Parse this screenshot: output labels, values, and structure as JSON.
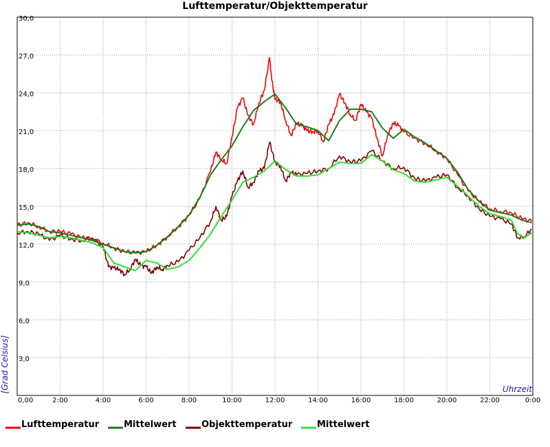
{
  "chart_data": {
    "type": "line",
    "title": "Lufttemperatur/Objekttemperatur",
    "xlabel": "Uhrzeit",
    "ylabel": "[Grad Celsius]",
    "xlim": [
      0,
      24
    ],
    "ylim": [
      0,
      30
    ],
    "grid": true,
    "legend_position": "bottom",
    "x_tick_labels": [
      "0,00",
      "2:00",
      "4:00",
      "6:00",
      "8:00",
      "10:00",
      "12:00",
      "14:00",
      "16:00",
      "18:00",
      "20:00",
      "22:00",
      "0:00"
    ],
    "y_tick_labels": [
      "3,0",
      "6,0",
      "9,0",
      "12,0",
      "15,0",
      "18,0",
      "21,0",
      "24,0",
      "27,0",
      "30,0"
    ],
    "series": [
      {
        "name": "Lufttemperatur",
        "color": "#ee0000",
        "x": [
          0,
          0.5,
          1,
          1.5,
          2,
          2.5,
          3,
          3.5,
          4,
          4.5,
          5,
          5.5,
          6,
          6.5,
          7,
          7.5,
          8,
          8.5,
          9,
          9.25,
          9.5,
          9.75,
          10,
          10.25,
          10.5,
          10.75,
          11,
          11.25,
          11.5,
          11.75,
          11.85,
          12,
          12.25,
          12.5,
          12.75,
          13,
          13.25,
          13.5,
          13.75,
          14,
          14.25,
          14.5,
          14.75,
          15,
          15.25,
          15.5,
          15.75,
          16,
          16.25,
          16.5,
          16.75,
          17,
          17.25,
          17.5,
          17.75,
          18,
          18.5,
          19,
          19.5,
          20,
          20.5,
          21,
          21.5,
          22,
          22.5,
          23,
          23.5,
          23.95
        ],
        "values": [
          13.5,
          13.7,
          13.4,
          13.0,
          13.0,
          12.8,
          12.5,
          12.4,
          12.1,
          11.7,
          11.4,
          11.3,
          11.4,
          11.9,
          12.6,
          13.4,
          14.3,
          15.6,
          17.8,
          19.3,
          18.7,
          18.4,
          20.5,
          22.8,
          23.6,
          22.2,
          21.5,
          23.2,
          24.2,
          26.8,
          25.0,
          23.5,
          23.3,
          21.8,
          20.6,
          21.6,
          21.4,
          21.0,
          20.9,
          21.0,
          20.1,
          21.5,
          22.3,
          23.9,
          23.2,
          22.3,
          21.8,
          23.1,
          22.5,
          22.0,
          20.4,
          19.0,
          20.7,
          21.6,
          21.4,
          20.9,
          20.4,
          20.0,
          19.4,
          18.8,
          17.5,
          16.2,
          15.4,
          14.8,
          14.6,
          14.5,
          14.0,
          13.8
        ]
      },
      {
        "name": "Mittelwert",
        "color": "#1b7a1b",
        "x": [
          0,
          0.5,
          1,
          1.5,
          2,
          2.5,
          3,
          3.5,
          4,
          4.5,
          5,
          5.5,
          6,
          6.5,
          7,
          7.5,
          8,
          8.5,
          9,
          9.5,
          10,
          10.5,
          11,
          11.5,
          12,
          12.5,
          13,
          13.5,
          14,
          14.5,
          15,
          15.5,
          16,
          16.5,
          17,
          17.5,
          18,
          18.5,
          19,
          19.5,
          20,
          20.5,
          21,
          21.5,
          22,
          22.5,
          23,
          23.5,
          23.95
        ],
        "values": [
          13.5,
          13.6,
          13.4,
          13.0,
          12.9,
          12.7,
          12.5,
          12.3,
          12.0,
          11.7,
          11.4,
          11.3,
          11.4,
          11.9,
          12.6,
          13.4,
          14.3,
          15.7,
          17.5,
          18.7,
          19.8,
          21.3,
          22.6,
          23.3,
          23.9,
          22.8,
          21.5,
          21.3,
          21.0,
          20.2,
          21.8,
          22.7,
          22.7,
          22.5,
          21.2,
          20.4,
          21.1,
          20.5,
          20.0,
          19.4,
          18.8,
          17.7,
          16.3,
          15.4,
          14.7,
          14.5,
          14.3,
          13.9,
          13.7
        ]
      },
      {
        "name": "Objekttemperatur",
        "color": "#7a0000",
        "x": [
          0,
          0.5,
          1,
          1.5,
          2,
          2.5,
          3,
          3.5,
          4,
          4.25,
          4.5,
          4.75,
          5,
          5.25,
          5.5,
          5.75,
          6,
          6.25,
          6.5,
          6.75,
          7,
          7.5,
          8,
          8.5,
          9,
          9.25,
          9.5,
          9.75,
          10,
          10.25,
          10.5,
          10.75,
          11,
          11.25,
          11.5,
          11.75,
          12,
          12.25,
          12.5,
          12.75,
          13,
          13.5,
          14,
          14.5,
          15,
          15.5,
          16,
          16.5,
          17,
          17.5,
          18,
          18.5,
          19,
          19.5,
          20,
          20.5,
          21,
          21.5,
          22,
          22.5,
          23,
          23.3,
          23.6,
          23.95
        ],
        "values": [
          12.9,
          13.0,
          12.8,
          12.3,
          12.7,
          12.4,
          12.3,
          12.5,
          11.8,
          10.2,
          10.1,
          10.0,
          9.6,
          10.0,
          10.8,
          10.3,
          10.2,
          9.7,
          10.2,
          10.0,
          10.3,
          10.6,
          11.5,
          12.5,
          13.8,
          15.0,
          13.9,
          14.2,
          15.8,
          17.0,
          17.8,
          16.5,
          16.9,
          17.8,
          18.0,
          20.1,
          18.5,
          18.2,
          17.0,
          17.7,
          17.5,
          17.6,
          17.8,
          18.0,
          19.0,
          18.5,
          18.6,
          19.4,
          18.6,
          18.0,
          18.1,
          17.2,
          17.0,
          17.3,
          17.5,
          16.5,
          15.8,
          14.8,
          14.2,
          14.0,
          13.6,
          12.5,
          12.6,
          13.2
        ]
      },
      {
        "name": "Mittelwert",
        "color": "#33dd33",
        "x": [
          0,
          0.5,
          1,
          1.5,
          2,
          2.5,
          3,
          3.5,
          4,
          4.5,
          5,
          5.5,
          6,
          6.5,
          7,
          7.5,
          8,
          8.5,
          9,
          9.5,
          10,
          10.5,
          11,
          11.5,
          12,
          12.5,
          13,
          13.5,
          14,
          14.5,
          15,
          15.5,
          16,
          16.5,
          17,
          17.5,
          18,
          18.5,
          19,
          19.5,
          20,
          20.5,
          21,
          21.5,
          22,
          22.5,
          23,
          23.3,
          23.6,
          23.95
        ],
        "values": [
          13.0,
          12.9,
          12.7,
          12.5,
          12.6,
          12.5,
          12.3,
          12.1,
          11.7,
          10.5,
          10.2,
          9.9,
          10.7,
          10.5,
          10.0,
          10.2,
          10.7,
          11.7,
          12.8,
          14.2,
          15.5,
          16.9,
          17.3,
          17.8,
          18.6,
          17.9,
          17.4,
          17.4,
          17.5,
          18.0,
          18.5,
          18.4,
          18.4,
          19.1,
          18.6,
          17.9,
          17.6,
          17.0,
          16.9,
          17.1,
          17.3,
          16.6,
          15.8,
          15.0,
          14.4,
          14.2,
          13.9,
          12.8,
          12.5,
          12.9
        ]
      }
    ]
  }
}
